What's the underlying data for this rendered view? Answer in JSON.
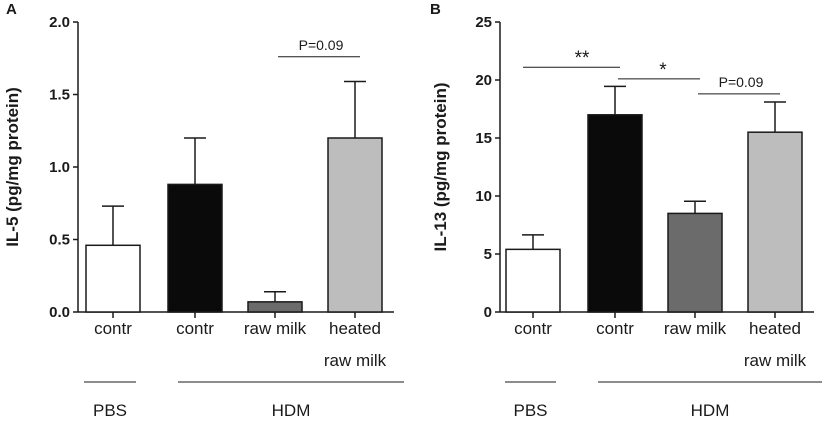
{
  "figure": {
    "panels": [
      {
        "letter": "A"
      },
      {
        "letter": "B"
      }
    ]
  },
  "chart_data": [
    {
      "type": "bar",
      "panel": "A",
      "ylabel": "IL-5 (pg/mg protein)",
      "ylim": [
        0,
        2.0
      ],
      "yticks": [
        "0.0",
        "0.5",
        "1.0",
        "1.5",
        "2.0"
      ],
      "categories": [
        [
          "contr"
        ],
        [
          "contr"
        ],
        [
          "raw milk"
        ],
        [
          "heated",
          "raw milk"
        ]
      ],
      "values": [
        0.46,
        0.88,
        0.07,
        1.2
      ],
      "errors": [
        0.27,
        0.32,
        0.07,
        0.39
      ],
      "colors": [
        "#ffffff",
        "#0a0a0a",
        "#6b6b6b",
        "#bdbdbd"
      ],
      "groups": [
        {
          "label": "PBS",
          "bars": [
            0,
            0
          ]
        },
        {
          "label": "HDM",
          "bars": [
            1,
            3
          ]
        }
      ],
      "significance": [
        {
          "from": 2,
          "to": 3,
          "level": 1.76,
          "label": "P=0.09",
          "kind": "text"
        }
      ]
    },
    {
      "type": "bar",
      "panel": "B",
      "ylabel": "IL-13 (pg/mg protein)",
      "ylim": [
        0,
        25
      ],
      "yticks": [
        "0",
        "5",
        "10",
        "15",
        "20",
        "25"
      ],
      "categories": [
        [
          "contr"
        ],
        [
          "contr"
        ],
        [
          "raw milk"
        ],
        [
          "heated",
          "raw milk"
        ]
      ],
      "values": [
        5.4,
        17.0,
        8.5,
        15.5
      ],
      "errors": [
        1.25,
        2.45,
        1.05,
        2.6
      ],
      "colors": [
        "#ffffff",
        "#0a0a0a",
        "#6b6b6b",
        "#bdbdbd"
      ],
      "groups": [
        {
          "label": "PBS",
          "bars": [
            0,
            0
          ]
        },
        {
          "label": "HDM",
          "bars": [
            1,
            3
          ]
        }
      ],
      "significance": [
        {
          "from": 0,
          "to": 1,
          "level": 21.1,
          "label": "**",
          "kind": "star"
        },
        {
          "from": 1,
          "to": 2,
          "level": 20.1,
          "label": "*",
          "kind": "star"
        },
        {
          "from": 2,
          "to": 3,
          "level": 18.8,
          "label": "P=0.09",
          "kind": "text"
        }
      ]
    }
  ]
}
